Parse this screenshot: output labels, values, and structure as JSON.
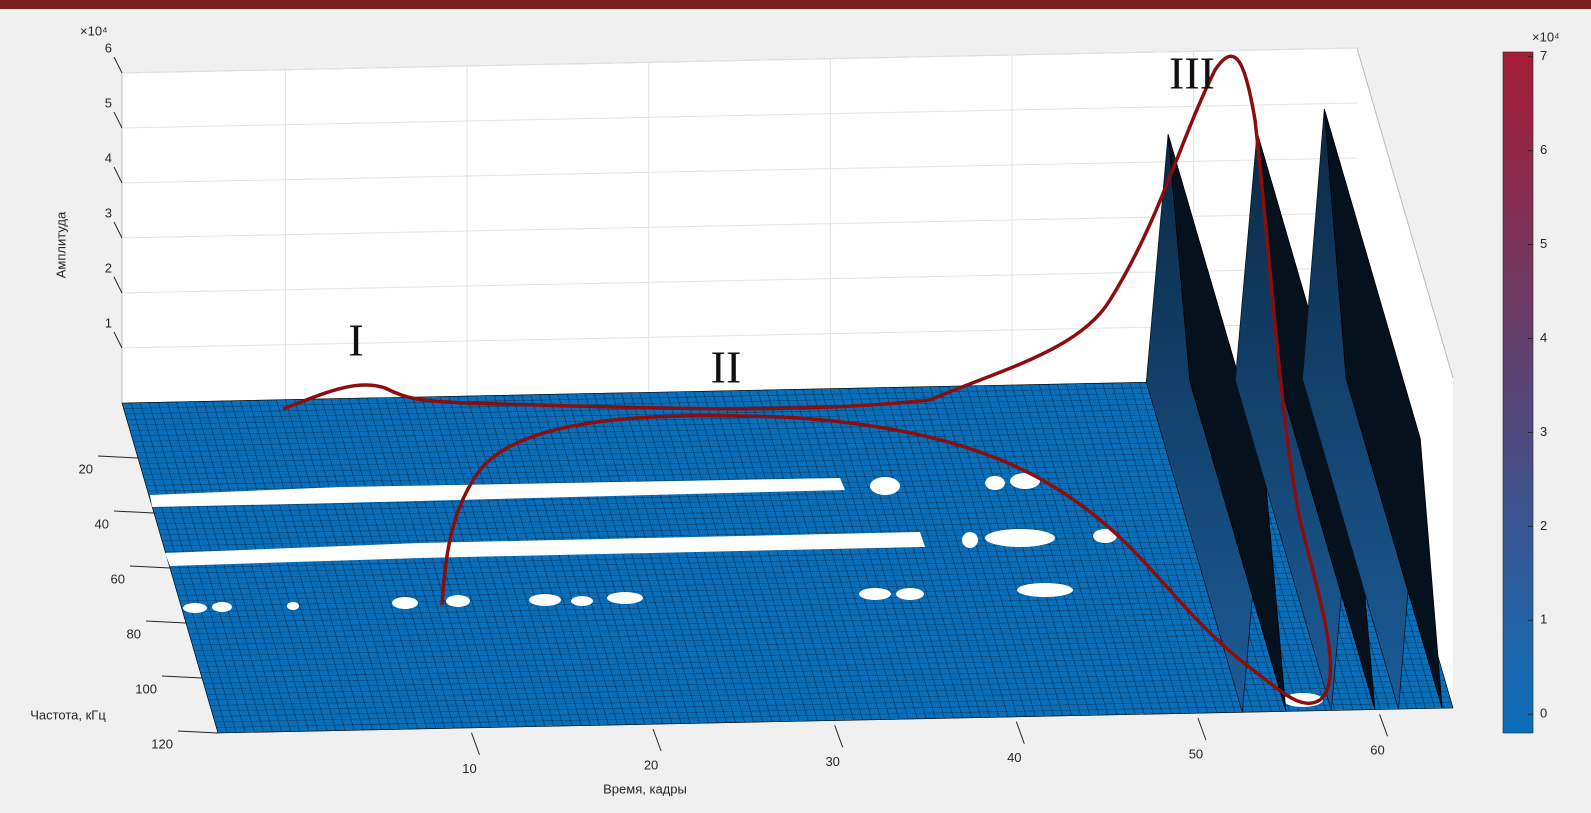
{
  "chart_data": {
    "type": "surface3d",
    "xlabel": "Время, кадры",
    "ylabel": "Частота, кГц",
    "zlabel": "Амплитуда",
    "xlim": [
      1,
      69
    ],
    "xticks": [
      10,
      20,
      30,
      40,
      50,
      60
    ],
    "ylim": [
      0,
      120
    ],
    "yticks": [
      20,
      40,
      60,
      80,
      100,
      120
    ],
    "zlim": [
      0,
      60000
    ],
    "zexponent": "×10⁴",
    "zticks": [
      {
        "value": 10000,
        "label": "1"
      },
      {
        "value": 20000,
        "label": "2"
      },
      {
        "value": 30000,
        "label": "3"
      },
      {
        "value": 40000,
        "label": "4"
      },
      {
        "value": 50000,
        "label": "5"
      },
      {
        "value": 60000,
        "label": "6"
      }
    ],
    "peaks": [
      {
        "x": 58.6,
        "z": 45000
      },
      {
        "x": 63.5,
        "z": 45000
      },
      {
        "x": 67.2,
        "z": 49000
      }
    ],
    "colormap": [
      "#0a6fba",
      "#a61c34"
    ],
    "clim": [
      -2000,
      70500
    ],
    "cexponent": "×10⁴",
    "cticks": [
      {
        "value": 0,
        "label": "0"
      },
      {
        "value": 10000,
        "label": "1"
      },
      {
        "value": 20000,
        "label": "2"
      },
      {
        "value": 30000,
        "label": "3"
      },
      {
        "value": 40000,
        "label": "4"
      },
      {
        "value": 50000,
        "label": "5"
      },
      {
        "value": 60000,
        "label": "6"
      },
      {
        "value": 70000,
        "label": "7"
      }
    ],
    "annotations": [
      "I",
      "II",
      "III"
    ]
  }
}
